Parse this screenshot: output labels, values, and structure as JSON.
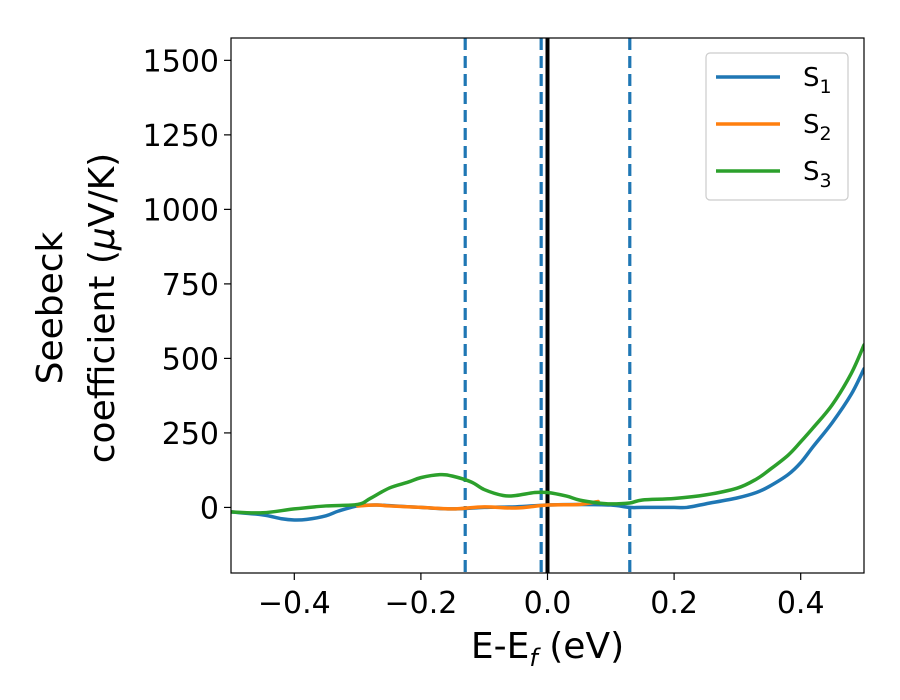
{
  "chart_data": {
    "type": "line",
    "title": "",
    "xlabel": {
      "main": "E-E",
      "sub": "f",
      "unit": " (eV)"
    },
    "ylabel": {
      "line1": "Seebeck",
      "line2_prefix": "coefficient  (",
      "line2_mu": "μ",
      "line2_suffix": "V/K)"
    },
    "xlim": [
      -0.5,
      0.5
    ],
    "ylim": [
      -220,
      1575
    ],
    "xticks": [
      -0.4,
      -0.2,
      0.0,
      0.2,
      0.4
    ],
    "xtick_labels": [
      "−0.4",
      "−0.2",
      "0.0",
      "0.2",
      "0.4"
    ],
    "yticks": [
      0,
      250,
      500,
      750,
      1000,
      1250,
      1500
    ],
    "ytick_labels": [
      "0",
      "250",
      "500",
      "750",
      "1000",
      "1250",
      "1500"
    ],
    "grid": false,
    "legend_position": "top-right",
    "vlines": [
      {
        "x": -0.13,
        "style": "dashed",
        "color": "#1f77b4"
      },
      {
        "x": -0.01,
        "style": "dashed",
        "color": "#1f77b4"
      },
      {
        "x": 0.13,
        "style": "dashed",
        "color": "#1f77b4"
      },
      {
        "x": 0.0,
        "style": "solid",
        "color": "#000000"
      }
    ],
    "series": [
      {
        "name": "S",
        "sub": "1",
        "color": "#1f77b4",
        "x": [
          -0.5,
          -0.45,
          -0.42,
          -0.4,
          -0.38,
          -0.35,
          -0.33,
          -0.3,
          -0.27,
          -0.25,
          -0.2,
          -0.15,
          -0.1,
          -0.05,
          0.0,
          0.05,
          0.1,
          0.13,
          0.15,
          0.2,
          0.22,
          0.25,
          0.3,
          0.33,
          0.35,
          0.38,
          0.4,
          0.42,
          0.45,
          0.48,
          0.5
        ],
        "y": [
          -15,
          -25,
          -38,
          -42,
          -40,
          -28,
          -12,
          5,
          8,
          6,
          0,
          -5,
          0,
          2,
          8,
          10,
          8,
          0,
          0,
          0,
          0,
          12,
          32,
          50,
          70,
          110,
          150,
          205,
          285,
          380,
          465
        ]
      },
      {
        "name": "S",
        "sub": "2",
        "color": "#ff7f0e",
        "x": [
          -0.3,
          -0.27,
          -0.25,
          -0.2,
          -0.15,
          -0.1,
          -0.05,
          0.0,
          0.05,
          0.08
        ],
        "y": [
          5,
          8,
          5,
          0,
          -5,
          2,
          -2,
          8,
          10,
          20
        ]
      },
      {
        "name": "S",
        "sub": "3",
        "color": "#2ca02c",
        "x": [
          -0.5,
          -0.45,
          -0.4,
          -0.35,
          -0.3,
          -0.28,
          -0.25,
          -0.22,
          -0.2,
          -0.17,
          -0.15,
          -0.12,
          -0.1,
          -0.07,
          -0.05,
          -0.02,
          0.0,
          0.03,
          0.05,
          0.08,
          0.1,
          0.13,
          0.15,
          0.2,
          0.25,
          0.3,
          0.33,
          0.35,
          0.38,
          0.4,
          0.42,
          0.45,
          0.48,
          0.5
        ],
        "y": [
          -15,
          -18,
          -5,
          5,
          10,
          30,
          65,
          85,
          100,
          110,
          105,
          85,
          60,
          40,
          40,
          50,
          50,
          38,
          25,
          15,
          12,
          15,
          25,
          30,
          42,
          65,
          95,
          125,
          175,
          220,
          268,
          345,
          450,
          545
        ]
      }
    ]
  }
}
